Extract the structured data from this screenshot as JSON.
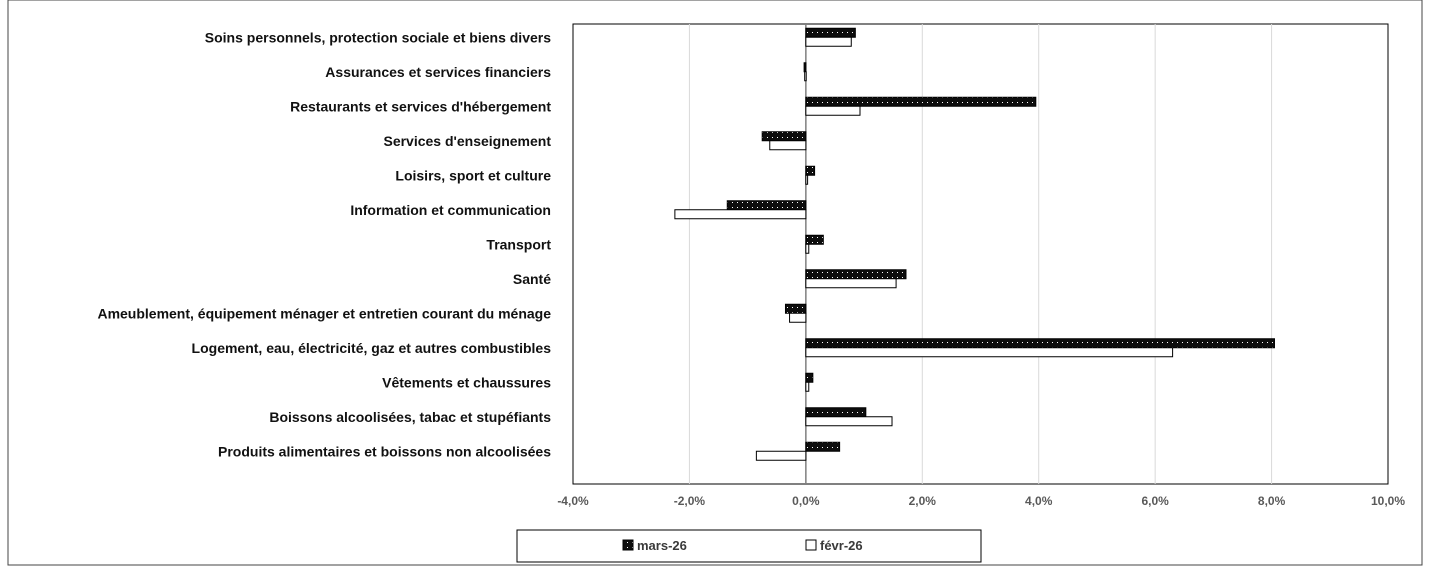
{
  "chart_data": {
    "type": "bar",
    "orientation": "horizontal",
    "title": "",
    "xlabel": "",
    "ylabel": "",
    "categories": [
      "Soins personnels, protection sociale et biens divers",
      "Assurances et services financiers",
      "Restaurants et services d'hébergement",
      "Services d'enseignement",
      "Loisirs, sport et culture",
      "Information et communication",
      "Transport",
      "Santé",
      "Ameublement, équipement ménager et entretien courant du ménage",
      "Logement, eau, électricité, gaz et autres combustibles",
      "Vêtements et chaussures",
      "Boissons alcoolisées, tabac et stupéfiants",
      "Produits alimentaires et boissons non alcoolisées"
    ],
    "series": [
      {
        "name": "mars-26",
        "fill": "dotted-black",
        "values": [
          0.85,
          -0.03,
          3.95,
          -0.75,
          0.15,
          -1.35,
          0.3,
          1.72,
          -0.35,
          8.05,
          0.12,
          1.03,
          0.58
        ]
      },
      {
        "name": "févr-26",
        "fill": "white",
        "values": [
          0.78,
          -0.02,
          0.93,
          -0.62,
          0.03,
          -2.25,
          0.05,
          1.55,
          -0.28,
          6.3,
          0.05,
          1.48,
          -0.85
        ]
      }
    ],
    "xlim": [
      -4,
      10
    ],
    "xticks": [
      -4,
      -2,
      0,
      2,
      4,
      6,
      8,
      10
    ],
    "xtick_labels": [
      "-4,0%",
      "-2,0%",
      "0,0%",
      "2,0%",
      "4,0%",
      "6,0%",
      "8,0%",
      "10,0%"
    ],
    "grid": "vertical",
    "legend_position": "bottom",
    "colors": {
      "bar_dark": "#0d0d0d",
      "bar_light": "#ffffff",
      "grid": "#d9d9d9",
      "axis": "#7f7f7f"
    }
  }
}
